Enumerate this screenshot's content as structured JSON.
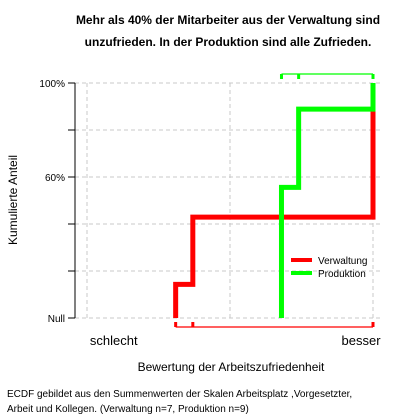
{
  "chart_data": {
    "type": "line",
    "title_lines": [
      "Mehr als 40% der Mitarbeiter aus der Verwaltung sind",
      "unzufrieden. In der Produktion sind alle Zufrieden."
    ],
    "ylabel": "Kumulierte Anteil",
    "xlabel": "Bewertung der Arbeitszufriedenheit",
    "x_category_labels": [
      "schlecht",
      "besser"
    ],
    "y_tick_labels": [
      "Null",
      "60%",
      "100%"
    ],
    "y_tick_values": [
      0,
      0.6,
      1.0
    ],
    "xlim": [
      0,
      1
    ],
    "ylim": [
      0,
      1
    ],
    "grid": true,
    "legend_position": "right",
    "caption_lines": [
      "ECDF gebildet aus den Summenwerten der Skalen Arbeitsplatz ,Vorgesetzter,",
      "Arbeit und Kollegen. (Verwaltung n=7, Produktion n=9)"
    ],
    "series": [
      {
        "name": "Verwaltung",
        "color": "#ff0000",
        "x": [
          0.31,
          0.37,
          1.0
        ],
        "y": [
          0.143,
          0.429,
          1.0
        ],
        "rug": [
          0.31,
          0.37,
          1.0
        ]
      },
      {
        "name": "Produktion",
        "color": "#00ff00",
        "x": [
          0.68,
          0.74,
          1.0
        ],
        "y": [
          0.556,
          0.889,
          1.0
        ],
        "rug": [
          0.68,
          0.74,
          1.0
        ]
      }
    ]
  }
}
